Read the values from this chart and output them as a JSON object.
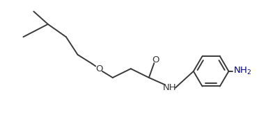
{
  "background_color": "#ffffff",
  "line_color": "#3a3a3a",
  "text_color": "#3a3a3a",
  "nh2_color": "#00008b",
  "line_width": 1.4,
  "font_size": 9.5,
  "figsize": [
    3.72,
    2.02
  ],
  "dpi": 100,
  "xlim": [
    0,
    10
  ],
  "ylim": [
    0,
    5.5
  ]
}
